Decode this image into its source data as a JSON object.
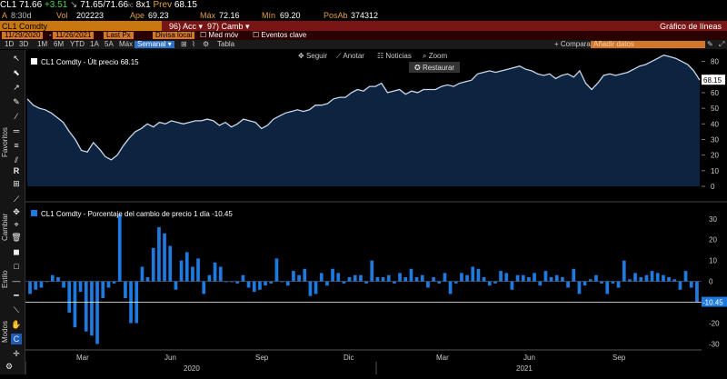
{
  "quote": {
    "ticker": "CL1",
    "last": "71.66",
    "change": "+3.51",
    "arrow": "↘",
    "bid_ask": "71.65/71.66",
    "ask_suffix": "ic",
    "size": "8x1",
    "prev_label": "Prev",
    "prev": "68.15",
    "time_prefix": "A",
    "time": "8:30d",
    "vol_label": "Vol",
    "vol": "202223",
    "open_label": "Ape",
    "open": "69.23",
    "high_label": "Máx",
    "high": "72.16",
    "low_label": "Mín",
    "low": "69.20",
    "pos_label": "PosAb",
    "pos": "374312"
  },
  "toolbar": {
    "security": "CL1 Comdty",
    "acc_num": "96",
    "acc": "Acc",
    "camb_num": "97",
    "camb": "Camb",
    "chart_type": "Gráfico de líneas"
  },
  "settings": {
    "date_from": "11/29/2020",
    "date_to": "11/26/2021",
    "last_px": "Last Px",
    "currency": "Divisa local",
    "med_mov": "Med móv",
    "events": "Eventos clave"
  },
  "periods": [
    "1D",
    "3D",
    "1M",
    "6M",
    "YTD",
    "1A",
    "5A",
    "Máx"
  ],
  "period_selected": "Semanal",
  "table_label": "Tabla",
  "compare_label": "+ Comparar",
  "add_data_label": "Añadir datos",
  "top_panel": {
    "legend": "CL1 Comdty - Últ precio 68.15",
    "last_value_tag": "68.15",
    "actions": [
      "Seguir",
      "Anotar",
      "Noticias",
      "Zoom"
    ],
    "restore": "Restaurar"
  },
  "bottom_panel": {
    "legend": "CL1 Comdty - Porcentaje del cambio de precio 1 día -10.45",
    "last_value_tag": "-10.45"
  },
  "side_labels": [
    "Favoritos",
    "Cambiar",
    "Estilo",
    "Modos"
  ],
  "axis": {
    "months": [
      "Mar",
      "Jun",
      "Sep",
      "Dic",
      "Mar",
      "Jun",
      "Sep"
    ],
    "years": [
      "2020",
      "2021"
    ]
  },
  "colors": {
    "line": "#c9d7ea",
    "area": "#0d2440",
    "bar": "#1f7ae0",
    "orange": "#c8780e",
    "red": "#7a1515"
  },
  "chart_data": [
    {
      "type": "area",
      "title": "CL1 Comdty - Últ precio 68.15",
      "ylim": [
        0,
        85
      ],
      "yticks": [
        0,
        10,
        20,
        30,
        40,
        50,
        60,
        70,
        80
      ],
      "values": [
        56,
        52,
        50,
        49,
        47,
        44,
        41,
        35,
        30,
        23,
        22,
        28,
        24,
        19,
        17,
        20,
        26,
        31,
        35,
        37,
        40,
        38,
        41,
        40,
        42,
        41,
        40,
        41,
        42,
        42,
        43,
        42,
        39,
        41,
        38,
        40,
        43,
        42,
        41,
        37,
        39,
        43,
        45,
        47,
        48,
        49,
        48,
        49,
        52,
        52,
        53,
        56,
        57,
        57,
        60,
        62,
        61,
        64,
        64,
        66,
        60,
        61,
        62,
        59,
        61,
        60,
        62,
        62,
        62,
        64,
        65,
        64,
        66,
        67,
        68,
        72,
        73,
        74,
        73,
        74,
        75,
        76,
        77,
        75,
        74,
        72,
        71,
        72,
        69,
        71,
        72,
        70,
        74,
        66,
        62,
        66,
        71,
        72,
        71,
        72,
        73,
        75,
        77,
        78,
        80,
        82,
        84,
        83,
        82,
        80,
        78,
        74,
        68
      ]
    },
    {
      "type": "bar",
      "title": "CL1 Comdty - Porcentaje del cambio de precio 1 día -10.45",
      "ylim": [
        -32,
        36
      ],
      "yticks": [
        -30,
        -20,
        -10,
        0,
        10,
        20,
        30
      ],
      "values": [
        -6,
        -4,
        -3,
        0,
        3,
        2,
        -3,
        -15,
        -22,
        -5,
        -24,
        -26,
        -30,
        -8,
        -3,
        -1,
        32,
        -8,
        -20,
        -20,
        7,
        2,
        16,
        26,
        23,
        17,
        -4,
        10,
        14,
        7,
        11,
        -6,
        3,
        9,
        7,
        0,
        0,
        -1,
        3,
        -3,
        -5,
        -4,
        -2,
        -1,
        11,
        0,
        -2,
        5,
        3,
        6,
        -7,
        -6,
        4,
        -2,
        6,
        4,
        -1,
        2,
        3,
        3,
        -1,
        10,
        2,
        2,
        3,
        -1,
        4,
        2,
        6,
        2,
        3,
        -3,
        2,
        -1,
        4,
        -6,
        -1,
        4,
        3,
        7,
        6,
        2,
        -2,
        -1,
        5,
        4,
        -4,
        3,
        3,
        2,
        4,
        -2,
        5,
        2,
        3,
        2,
        -3,
        6,
        -6,
        -2,
        1,
        3,
        -1,
        -6,
        -1,
        -3,
        10,
        1,
        4,
        2,
        3,
        5,
        4,
        3,
        2,
        1,
        -4,
        5,
        -3,
        -10
      ]
    }
  ]
}
